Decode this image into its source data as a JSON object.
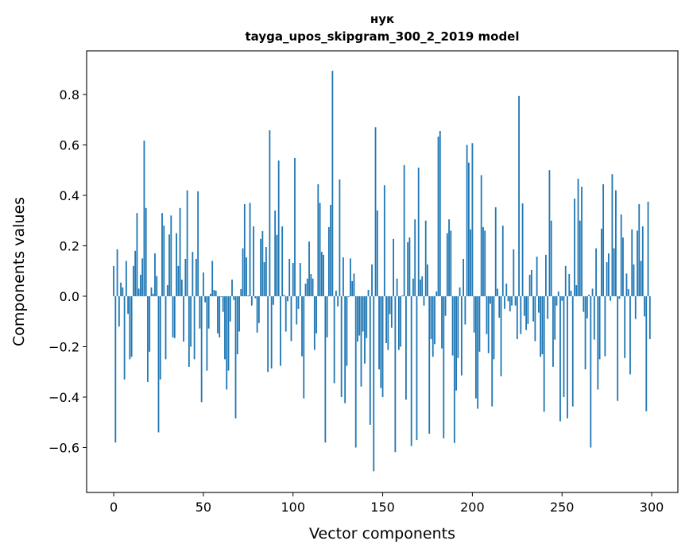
{
  "chart_data": {
    "type": "bar",
    "title_line1": "нук",
    "title_line2": "tayga_upos_skipgram_300_2_2019 model",
    "xlabel": "Vector components",
    "ylabel": "Components values",
    "xlim": [
      -15.1,
      314.6
    ],
    "ylim": [
      -0.778,
      0.973
    ],
    "xticks": [
      0,
      50,
      100,
      150,
      200,
      250,
      300
    ],
    "xtick_labels": [
      "0",
      "50",
      "100",
      "150",
      "200",
      "250",
      "300"
    ],
    "yticks": [
      -0.6,
      -0.4,
      -0.2,
      0.0,
      0.2,
      0.4,
      0.6,
      0.8
    ],
    "ytick_labels": [
      "−0.6",
      "−0.4",
      "−0.2",
      "0.0",
      "0.2",
      "0.4",
      "0.6",
      "0.8"
    ],
    "grid": false,
    "bar_color": "#1f77b4",
    "values": [
      0.12,
      -0.58,
      0.186,
      -0.12,
      0.054,
      0.035,
      -0.33,
      0.14,
      -0.07,
      -0.25,
      -0.24,
      0.12,
      0.18,
      0.33,
      0.03,
      0.085,
      0.15,
      0.617,
      0.35,
      -0.34,
      -0.22,
      0.035,
      0.01,
      0.17,
      0.08,
      -0.54,
      -0.33,
      0.33,
      0.28,
      -0.25,
      0.044,
      0.245,
      0.32,
      -0.163,
      -0.166,
      0.25,
      0.12,
      0.35,
      0.066,
      -0.18,
      0.148,
      0.42,
      -0.28,
      -0.2,
      0.176,
      -0.25,
      0.148,
      0.416,
      -0.128,
      -0.42,
      0.094,
      -0.024,
      -0.295,
      -0.128,
      0.01,
      0.14,
      0.025,
      0.022,
      -0.147,
      -0.163,
      -0.003,
      -0.062,
      -0.25,
      -0.37,
      -0.295,
      -0.1,
      0.066,
      -0.015,
      -0.484,
      -0.23,
      -0.14,
      0.028,
      0.19,
      0.365,
      0.154,
      0.003,
      0.37,
      -0.037,
      0.277,
      -0.008,
      -0.144,
      -0.106,
      0.227,
      0.258,
      0.135,
      0.195,
      -0.3,
      0.658,
      -0.286,
      -0.034,
      0.34,
      0.243,
      0.538,
      -0.276,
      0.277,
      0.005,
      -0.14,
      -0.02,
      0.148,
      -0.178,
      0.132,
      0.548,
      -0.112,
      -0.05,
      0.132,
      -0.238,
      -0.405,
      0.05,
      0.07,
      0.217,
      0.088,
      0.07,
      -0.213,
      -0.147,
      0.444,
      0.37,
      0.176,
      0.164,
      -0.58,
      -0.163,
      0.274,
      0.362,
      0.894,
      -0.345,
      0.022,
      -0.04,
      0.463,
      -0.4,
      0.154,
      -0.424,
      -0.276,
      -0.003,
      0.15,
      0.06,
      0.09,
      -0.6,
      -0.18,
      -0.156,
      -0.358,
      -0.14,
      -0.267,
      -0.166,
      0.025,
      -0.51,
      0.126,
      -0.694,
      0.67,
      0.34,
      -0.29,
      -0.364,
      -0.4,
      0.44,
      -0.186,
      -0.213,
      -0.071,
      -0.125,
      0.227,
      -0.618,
      0.07,
      -0.213,
      -0.2,
      0.003,
      0.52,
      -0.41,
      0.214,
      0.233,
      -0.594,
      0.07,
      0.305,
      -0.57,
      0.51,
      0.066,
      0.079,
      -0.037,
      0.3,
      0.126,
      -0.545,
      -0.17,
      -0.24,
      -0.19,
      0.019,
      0.633,
      0.655,
      -0.207,
      -0.563,
      -0.078,
      0.25,
      0.305,
      0.26,
      -0.235,
      -0.582,
      -0.374,
      -0.245,
      0.035,
      -0.314,
      0.148,
      -0.112,
      0.6,
      0.53,
      0.265,
      0.607,
      -0.144,
      -0.405,
      -0.446,
      -0.22,
      0.48,
      0.274,
      0.26,
      -0.15,
      -0.226,
      -0.03,
      -0.437,
      -0.25,
      0.353,
      0.03,
      -0.085,
      -0.317,
      0.28,
      -0.05,
      0.05,
      -0.02,
      -0.06,
      -0.037,
      0.186,
      -0.037,
      -0.17,
      0.794,
      -0.15,
      0.368,
      -0.078,
      -0.134,
      -0.11,
      0.085,
      0.104,
      -0.1,
      -0.178,
      0.157,
      -0.065,
      -0.24,
      -0.23,
      -0.458,
      0.164,
      -0.09,
      0.5,
      0.3,
      -0.28,
      -0.172,
      -0.037,
      0.019,
      -0.496,
      -0.018,
      -0.4,
      0.12,
      -0.484,
      0.088,
      0.022,
      -0.437,
      0.387,
      0.044,
      0.466,
      0.3,
      0.434,
      -0.062,
      -0.29,
      -0.088,
      0.006,
      -0.6,
      0.03,
      -0.172,
      0.19,
      -0.37,
      -0.25,
      0.268,
      0.444,
      -0.238,
      0.135,
      0.17,
      -0.018,
      0.484,
      0.19,
      0.42,
      -0.415,
      -0.01,
      0.324,
      0.233,
      -0.245,
      0.09,
      0.028,
      -0.31,
      0.265,
      0.126,
      -0.09,
      0.26,
      0.365,
      0.14,
      0.277,
      -0.08,
      -0.456,
      0.375,
      -0.17
    ]
  }
}
